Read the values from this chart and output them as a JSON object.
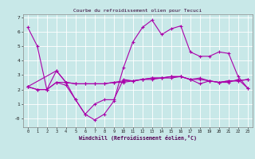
{
  "title": "Courbe du refroidissement olien pour Tecuci",
  "xlabel": "Windchill (Refroidissement éolien,°C)",
  "xlim": [
    -0.5,
    23.5
  ],
  "ylim": [
    -0.6,
    7.2
  ],
  "background_color": "#c8e8e8",
  "line_color": "#aa00aa",
  "grid_color": "#ffffff",
  "line1_x": [
    0,
    1,
    2,
    3,
    4,
    5,
    6,
    7,
    8,
    9,
    10,
    11,
    12,
    13,
    14,
    15,
    16,
    17,
    18,
    19,
    20,
    21,
    22,
    23
  ],
  "line1_y": [
    6.3,
    5.0,
    2.0,
    2.5,
    2.3,
    1.3,
    0.3,
    -0.1,
    0.3,
    1.2,
    3.5,
    5.3,
    6.3,
    6.8,
    5.8,
    6.2,
    6.4,
    4.6,
    4.3,
    4.3,
    4.6,
    4.5,
    2.9,
    2.1
  ],
  "line2_x": [
    0,
    1,
    2,
    3,
    4,
    5,
    6,
    7,
    8,
    9,
    10,
    11,
    12,
    13,
    14,
    15,
    16,
    17,
    18,
    19,
    20,
    21,
    22,
    23
  ],
  "line2_y": [
    2.2,
    2.0,
    2.0,
    3.3,
    2.5,
    2.4,
    2.4,
    2.4,
    2.4,
    2.5,
    2.6,
    2.6,
    2.7,
    2.8,
    2.8,
    2.9,
    2.9,
    2.7,
    2.8,
    2.6,
    2.5,
    2.6,
    2.6,
    2.7
  ],
  "line3_x": [
    0,
    1,
    2,
    3,
    4,
    5,
    6,
    7,
    8,
    9,
    10,
    11,
    12,
    13,
    14,
    15,
    16,
    17,
    18,
    19,
    20,
    21,
    22,
    23
  ],
  "line3_y": [
    2.2,
    2.0,
    2.0,
    2.5,
    2.5,
    2.4,
    2.4,
    2.4,
    2.4,
    2.5,
    2.5,
    2.6,
    2.7,
    2.7,
    2.8,
    2.8,
    2.9,
    2.7,
    2.7,
    2.6,
    2.5,
    2.6,
    2.6,
    2.7
  ],
  "line4_x": [
    0,
    3,
    4,
    5,
    6,
    7,
    8,
    9,
    10,
    11,
    12,
    13,
    14,
    15,
    16,
    17,
    18,
    19,
    20,
    21,
    22,
    23
  ],
  "line4_y": [
    2.2,
    3.3,
    2.5,
    1.3,
    0.3,
    1.0,
    1.3,
    1.3,
    2.7,
    2.6,
    2.7,
    2.8,
    2.8,
    2.9,
    2.9,
    2.7,
    2.4,
    2.6,
    2.5,
    2.5,
    2.7,
    2.1
  ]
}
